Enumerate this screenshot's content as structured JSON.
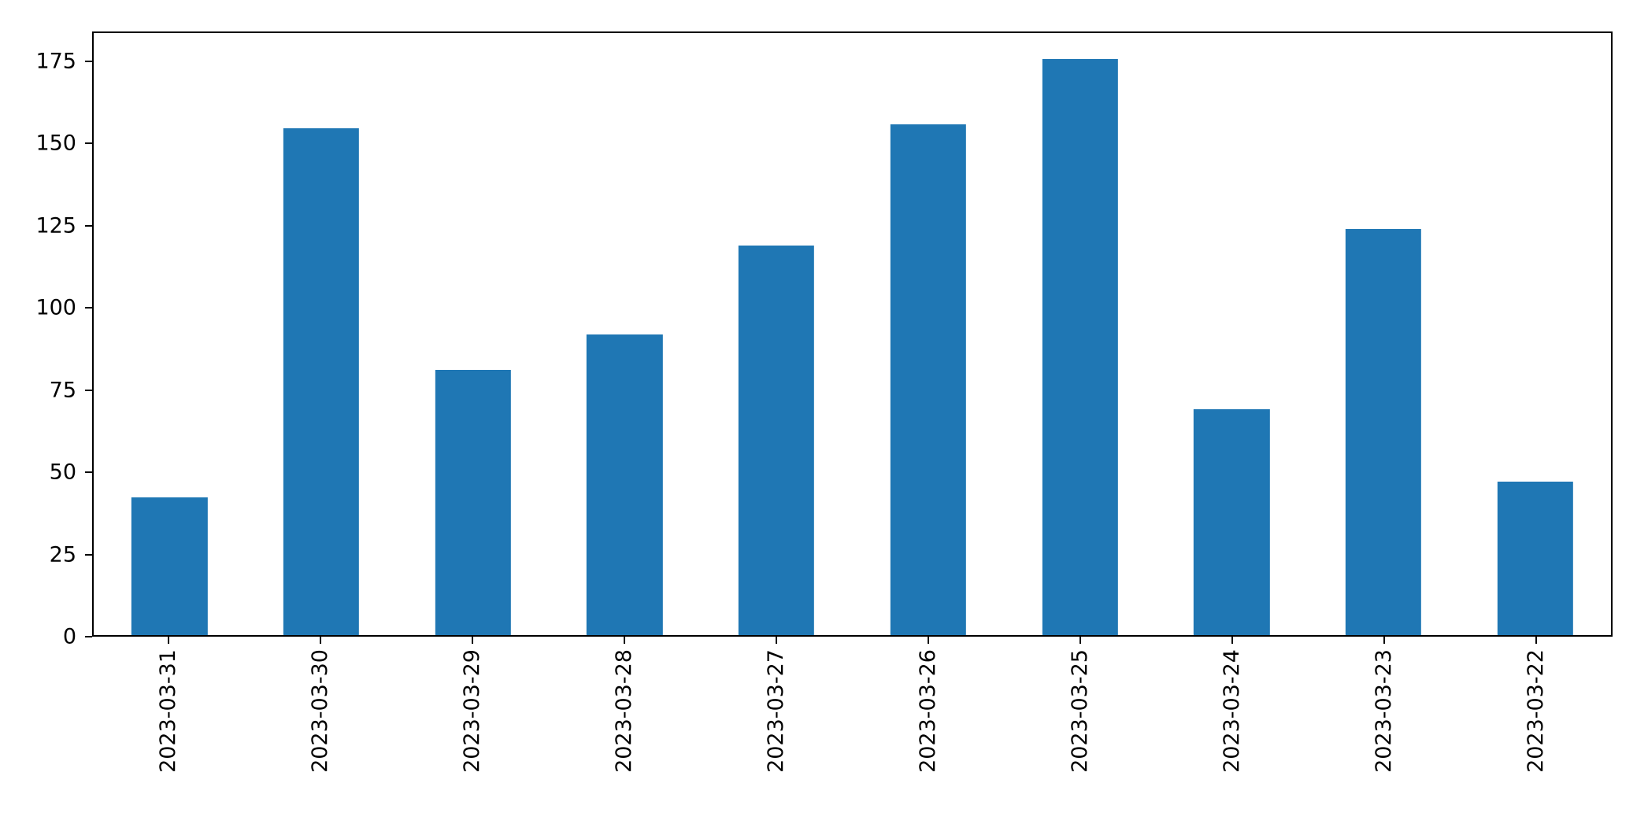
{
  "figure": {
    "background": "#ffffff",
    "bar_color": "#1f77b4",
    "axis_color": "#000000"
  },
  "chart_data": {
    "type": "bar",
    "title": "",
    "xlabel": "",
    "ylabel": "",
    "categories": [
      "2023-03-31",
      "2023-03-30",
      "2023-03-29",
      "2023-03-28",
      "2023-03-27",
      "2023-03-26",
      "2023-03-25",
      "2023-03-24",
      "2023-03-23",
      "2023-03-22"
    ],
    "values": [
      42,
      155,
      81,
      92,
      119,
      156,
      176,
      69,
      124,
      47
    ],
    "ylim": [
      0,
      184
    ],
    "yticks": [
      0,
      25,
      50,
      75,
      100,
      125,
      150,
      175
    ],
    "x_tick_rotation": 90,
    "bar_width_fraction": 0.5,
    "grid": false,
    "legend": null
  }
}
